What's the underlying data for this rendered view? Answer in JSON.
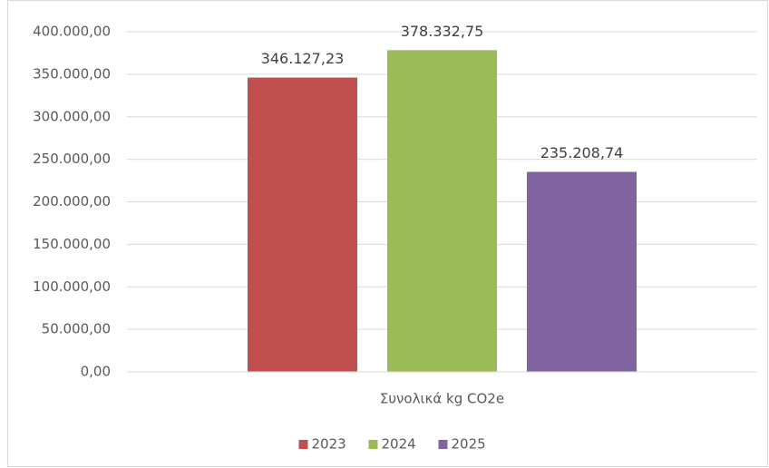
{
  "chart_data": {
    "type": "bar",
    "categories": [
      "Συνολικά kg CO2e"
    ],
    "series": [
      {
        "name": "2023",
        "color": "#c0504d",
        "values": [
          346127.23
        ],
        "value_labels": [
          "346.127,23"
        ]
      },
      {
        "name": "2024",
        "color": "#9bbb59",
        "values": [
          378332.75
        ],
        "value_labels": [
          "378.332,75"
        ]
      },
      {
        "name": "2025",
        "color": "#8064a2",
        "values": [
          235208.74
        ],
        "value_labels": [
          "235.208,74"
        ]
      }
    ],
    "ylim": [
      0,
      400000
    ],
    "yticks": [
      {
        "value": 0,
        "label": "0,00"
      },
      {
        "value": 50000,
        "label": "50.000,00"
      },
      {
        "value": 100000,
        "label": "100.000,00"
      },
      {
        "value": 150000,
        "label": "150.000,00"
      },
      {
        "value": 200000,
        "label": "200.000,00"
      },
      {
        "value": 250000,
        "label": "250.000,00"
      },
      {
        "value": 300000,
        "label": "300.000,00"
      },
      {
        "value": 350000,
        "label": "350.000,00"
      },
      {
        "value": 400000,
        "label": "400.000,00"
      }
    ],
    "grid": true,
    "legend": "bottom"
  }
}
